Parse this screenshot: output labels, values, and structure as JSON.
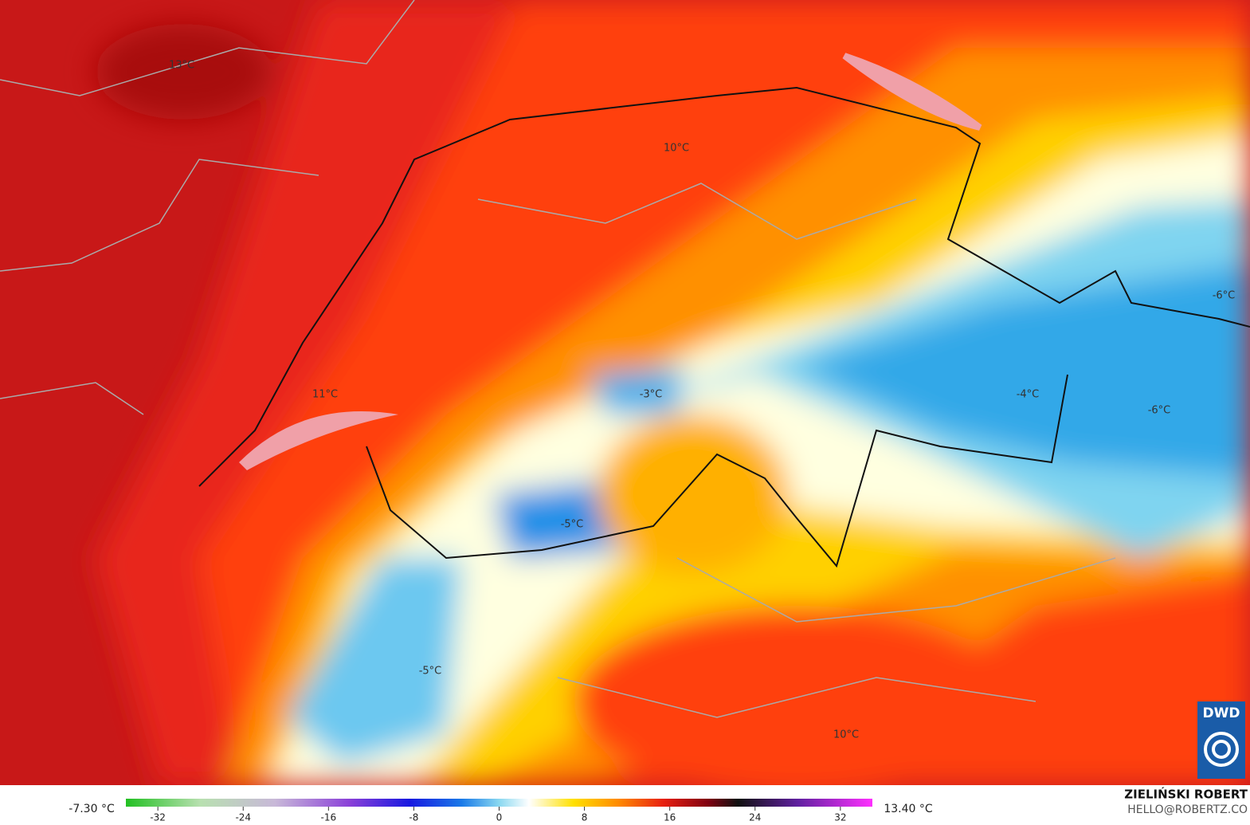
{
  "map": {
    "labels": [
      "13°C",
      "10°C",
      "11°C",
      "-3°C",
      "-5°C",
      "-4°C",
      "-6°C",
      "-6°C",
      "-5°C",
      "10°C"
    ]
  },
  "colorbar": {
    "min_label": "-7.30 °C",
    "max_label": "13.40 °C",
    "range": [
      -35,
      35
    ],
    "ticks": [
      -32,
      -24,
      -16,
      -8,
      0,
      8,
      16,
      24,
      32
    ]
  },
  "credit": {
    "author": "ZIELIŃSKI ROBERT",
    "contact": "HELLO@ROBERTZ.CO"
  },
  "logo": "DWD"
}
